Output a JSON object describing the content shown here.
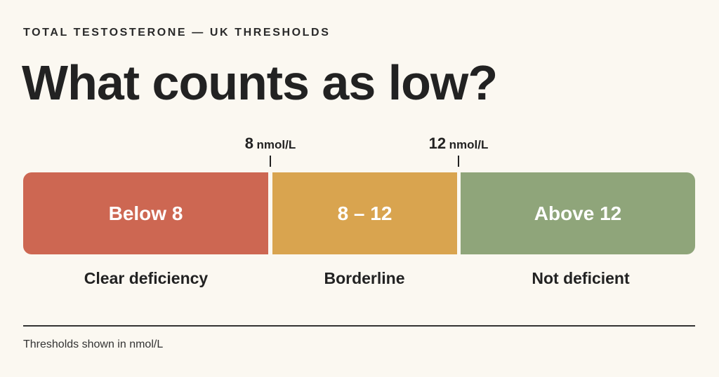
{
  "eyebrow": "TOTAL TESTOSTERONE — UK THRESHOLDS",
  "title": "What counts as low?",
  "thresholds": [
    {
      "value": "8",
      "unit": "nmol/L"
    },
    {
      "value": "12",
      "unit": "nmol/L"
    }
  ],
  "segments": [
    {
      "label": "Below 8",
      "caption": "Clear deficiency",
      "color": "#cd6752"
    },
    {
      "label": "8 – 12",
      "caption": "Borderline",
      "color": "#d9a44f"
    },
    {
      "label": "Above 12",
      "caption": "Not deficient",
      "color": "#8fa57a"
    }
  ],
  "footnote": "Thresholds shown in nmol/L"
}
